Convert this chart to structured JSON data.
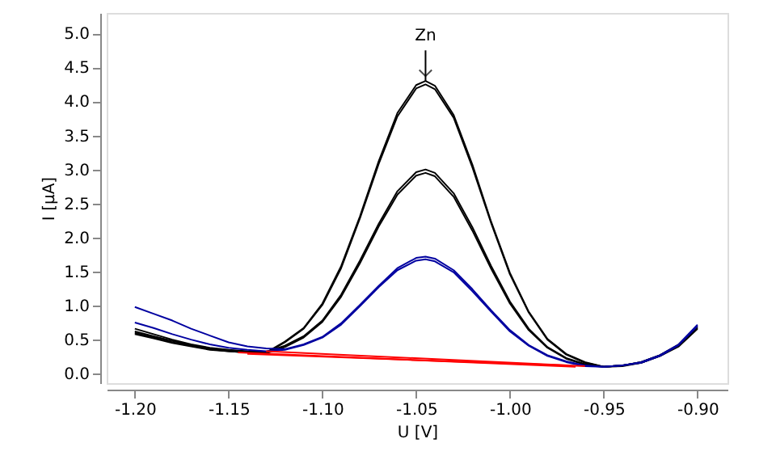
{
  "chart_data": {
    "type": "line",
    "xlabel": "U [V]",
    "ylabel": "I [µA]",
    "x": [
      -1.2,
      -1.19,
      -1.18,
      -1.17,
      -1.16,
      -1.15,
      -1.14,
      -1.13,
      -1.12,
      -1.11,
      -1.1,
      -1.09,
      -1.08,
      -1.07,
      -1.06,
      -1.05,
      -1.045,
      -1.04,
      -1.03,
      -1.02,
      -1.01,
      -1.0,
      -0.99,
      -0.98,
      -0.97,
      -0.96,
      -0.95,
      -0.94,
      -0.93,
      -0.92,
      -0.91,
      -0.9
    ],
    "series": [
      {
        "color": "#000000",
        "values": [
          0.62,
          0.55,
          0.48,
          0.42,
          0.37,
          0.34,
          0.32,
          0.31,
          0.47,
          0.67,
          1.03,
          1.58,
          2.31,
          3.12,
          3.83,
          4.24,
          4.3,
          4.23,
          3.8,
          3.07,
          2.23,
          1.48,
          0.91,
          0.51,
          0.29,
          0.17,
          0.1,
          0.12,
          0.17,
          0.27,
          0.42,
          0.68
        ]
      },
      {
        "color": "#000000",
        "values": [
          0.6,
          0.53,
          0.46,
          0.41,
          0.36,
          0.33,
          0.31,
          0.3,
          0.46,
          0.66,
          1.01,
          1.55,
          2.28,
          3.08,
          3.78,
          4.19,
          4.25,
          4.18,
          3.76,
          3.03,
          2.21,
          1.46,
          0.9,
          0.5,
          0.28,
          0.16,
          0.1,
          0.12,
          0.16,
          0.26,
          0.4,
          0.66
        ]
      },
      {
        "color": "#000000",
        "values": [
          0.66,
          0.58,
          0.5,
          0.43,
          0.38,
          0.35,
          0.33,
          0.32,
          0.41,
          0.55,
          0.78,
          1.16,
          1.66,
          2.2,
          2.68,
          2.96,
          3.0,
          2.95,
          2.65,
          2.15,
          1.58,
          1.06,
          0.66,
          0.39,
          0.23,
          0.14,
          0.1,
          0.12,
          0.17,
          0.27,
          0.43,
          0.7
        ]
      },
      {
        "color": "#000000",
        "values": [
          0.58,
          0.52,
          0.45,
          0.4,
          0.35,
          0.33,
          0.31,
          0.3,
          0.39,
          0.53,
          0.76,
          1.13,
          1.62,
          2.16,
          2.63,
          2.91,
          2.95,
          2.9,
          2.6,
          2.1,
          1.54,
          1.03,
          0.64,
          0.38,
          0.22,
          0.13,
          0.1,
          0.11,
          0.16,
          0.26,
          0.41,
          0.67
        ]
      },
      {
        "color": "#0000a0",
        "values": [
          0.98,
          0.88,
          0.78,
          0.66,
          0.56,
          0.46,
          0.4,
          0.37,
          0.36,
          0.43,
          0.54,
          0.74,
          1.01,
          1.29,
          1.55,
          1.7,
          1.72,
          1.69,
          1.52,
          1.24,
          0.93,
          0.64,
          0.42,
          0.27,
          0.18,
          0.12,
          0.1,
          0.12,
          0.17,
          0.27,
          0.43,
          0.72
        ]
      },
      {
        "color": "#0000a0",
        "values": [
          0.75,
          0.67,
          0.58,
          0.5,
          0.43,
          0.38,
          0.35,
          0.33,
          0.35,
          0.42,
          0.53,
          0.72,
          0.99,
          1.27,
          1.52,
          1.66,
          1.68,
          1.65,
          1.49,
          1.21,
          0.91,
          0.62,
          0.41,
          0.26,
          0.17,
          0.11,
          0.1,
          0.12,
          0.16,
          0.26,
          0.42,
          0.7
        ]
      },
      {
        "color": "#ff0000",
        "x": [
          -1.145,
          -0.965
        ],
        "values": [
          0.31,
          0.1
        ]
      },
      {
        "color": "#ff0000",
        "x": [
          -1.13,
          -0.96
        ],
        "values": [
          0.33,
          0.11
        ]
      },
      {
        "color": "#ff0000",
        "x": [
          -1.14,
          -0.97
        ],
        "values": [
          0.29,
          0.12
        ]
      }
    ],
    "annotations": [
      {
        "text": "Zn",
        "x": -1.045,
        "y": 4.3
      }
    ],
    "xlim": [
      -1.215,
      -0.884
    ],
    "xticks": [
      {
        "value": -1.2,
        "label": "-1.20"
      },
      {
        "value": -1.15,
        "label": "-1.15"
      },
      {
        "value": -1.1,
        "label": "-1.10"
      },
      {
        "value": -1.05,
        "label": "-1.05"
      },
      {
        "value": -1.0,
        "label": "-1.00"
      },
      {
        "value": -0.95,
        "label": "-0.95"
      },
      {
        "value": -0.9,
        "label": "-0.90"
      }
    ],
    "ylim": [
      -0.14,
      5.3
    ],
    "yticks": [
      {
        "value": 0,
        "label": "0.0"
      },
      0.5,
      {
        "value": 1,
        "label": "1.0"
      },
      1.5,
      {
        "value": 2,
        "label": "2.0"
      },
      2.5,
      {
        "value": 3,
        "label": "3.0"
      },
      3.5,
      {
        "value": 4,
        "label": "4.0"
      },
      4.5,
      {
        "value": 5,
        "label": "5.0"
      }
    ],
    "grid": false,
    "marker": "none",
    "line_style": "solid"
  }
}
